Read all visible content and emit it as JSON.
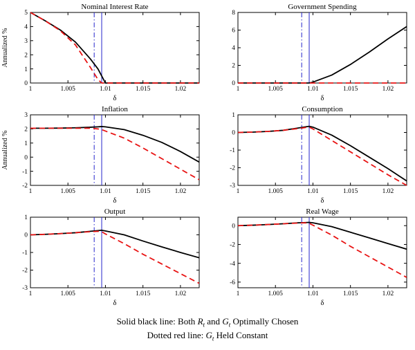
{
  "figure": {
    "background": "#ffffff",
    "accent_black": "#000000",
    "accent_red": "#e81313",
    "accent_blue": "#2424cc"
  },
  "caption": {
    "line1": {
      "pre": "Solid black line: Both ",
      "var1": "R",
      "sub1": "t",
      "mid": " and ",
      "var2": "G",
      "sub2": "t",
      "post": " Optimally Chosen"
    },
    "line2": {
      "pre": "Dotted red line: ",
      "var1": "G",
      "sub1": "t",
      "post": " Held Constant"
    }
  },
  "chart_data": [
    {
      "type": "line",
      "title": "Nominal Interest Rate",
      "xlabel": "δ",
      "ylabel": "Annualized %",
      "xlim": [
        1,
        1.0225
      ],
      "ylim": [
        0,
        5
      ],
      "xticks": [
        1,
        1.005,
        1.01,
        1.015,
        1.02
      ],
      "yticks": [
        0,
        1,
        2,
        3,
        4,
        5
      ],
      "vlines": [
        {
          "x": 1.0085,
          "style": "dashdot",
          "color": "#2424cc"
        },
        {
          "x": 1.0095,
          "style": "solid",
          "color": "#2424cc"
        }
      ],
      "series": [
        {
          "label": "Both Rt and Gt Optimally Chosen",
          "style": "solid",
          "color": "#000000",
          "x": [
            1,
            1.002,
            1.004,
            1.006,
            1.008,
            1.009,
            1.0095,
            1.01,
            1.0125,
            1.015,
            1.0175,
            1.02,
            1.0225
          ],
          "y": [
            5,
            4.4,
            3.75,
            2.9,
            1.7,
            1.0,
            0.5,
            0,
            0,
            0,
            0,
            0,
            0
          ]
        },
        {
          "label": "Gt Held Constant",
          "style": "dashed",
          "color": "#e81313",
          "x": [
            1,
            1.002,
            1.004,
            1.006,
            1.008,
            1.009,
            1.0095,
            1.01,
            1.0125,
            1.015,
            1.0175,
            1.02,
            1.0225
          ],
          "y": [
            5,
            4.4,
            3.7,
            2.7,
            1.1,
            0.25,
            0,
            0,
            0,
            0,
            0,
            0,
            0
          ]
        }
      ]
    },
    {
      "type": "line",
      "title": "Government Spending",
      "xlabel": "δ",
      "ylabel": "",
      "xlim": [
        1,
        1.0225
      ],
      "ylim": [
        0,
        8
      ],
      "xticks": [
        1,
        1.005,
        1.01,
        1.015,
        1.02
      ],
      "yticks": [
        0,
        2,
        4,
        6,
        8
      ],
      "vlines": [
        {
          "x": 1.0085,
          "style": "dashdot",
          "color": "#2424cc"
        },
        {
          "x": 1.0095,
          "style": "solid",
          "color": "#2424cc"
        }
      ],
      "series": [
        {
          "label": "Both Rt and Gt Optimally Chosen",
          "style": "solid",
          "color": "#000000",
          "x": [
            1,
            1.002,
            1.004,
            1.006,
            1.008,
            1.009,
            1.0095,
            1.01,
            1.0125,
            1.015,
            1.0175,
            1.02,
            1.0225
          ],
          "y": [
            0,
            0,
            0,
            0,
            0,
            0,
            0,
            0.1,
            0.9,
            2.1,
            3.5,
            5.0,
            6.4
          ]
        },
        {
          "label": "Gt Held Constant",
          "style": "dashed",
          "color": "#e81313",
          "x": [
            1,
            1.002,
            1.004,
            1.006,
            1.008,
            1.009,
            1.0095,
            1.01,
            1.0125,
            1.015,
            1.0175,
            1.02,
            1.0225
          ],
          "y": [
            0,
            0,
            0,
            0,
            0,
            0,
            0,
            0,
            0,
            0,
            0,
            0,
            0
          ]
        }
      ]
    },
    {
      "type": "line",
      "title": "Inflation",
      "xlabel": "δ",
      "ylabel": "Annualized %",
      "xlim": [
        1,
        1.0225
      ],
      "ylim": [
        -2,
        3
      ],
      "xticks": [
        1,
        1.005,
        1.01,
        1.015,
        1.02
      ],
      "yticks": [
        -2,
        -1,
        0,
        1,
        2,
        3
      ],
      "vlines": [
        {
          "x": 1.0085,
          "style": "dashdot",
          "color": "#2424cc"
        },
        {
          "x": 1.0095,
          "style": "solid",
          "color": "#2424cc"
        }
      ],
      "series": [
        {
          "label": "Both Rt and Gt Optimally Chosen",
          "style": "solid",
          "color": "#000000",
          "x": [
            1,
            1.002,
            1.004,
            1.006,
            1.008,
            1.009,
            1.0095,
            1.01,
            1.0125,
            1.015,
            1.0175,
            1.02,
            1.0225
          ],
          "y": [
            2.05,
            2.05,
            2.06,
            2.08,
            2.12,
            2.15,
            2.17,
            2.15,
            1.95,
            1.55,
            1.05,
            0.4,
            -0.35
          ]
        },
        {
          "label": "Gt Held Constant",
          "style": "dashed",
          "color": "#e81313",
          "x": [
            1,
            1.002,
            1.004,
            1.006,
            1.008,
            1.009,
            1.0095,
            1.01,
            1.0125,
            1.015,
            1.0175,
            1.02,
            1.0225
          ],
          "y": [
            2.05,
            2.05,
            2.05,
            2.05,
            2.05,
            2.0,
            1.95,
            1.85,
            1.35,
            0.65,
            -0.1,
            -0.85,
            -1.6
          ]
        }
      ]
    },
    {
      "type": "line",
      "title": "Consumption",
      "xlabel": "δ",
      "ylabel": "",
      "xlim": [
        1,
        1.0225
      ],
      "ylim": [
        -3,
        1
      ],
      "xticks": [
        1,
        1.005,
        1.01,
        1.015,
        1.02
      ],
      "yticks": [
        -3,
        -2,
        -1,
        0,
        1
      ],
      "vlines": [
        {
          "x": 1.0085,
          "style": "dashdot",
          "color": "#2424cc"
        },
        {
          "x": 1.0095,
          "style": "solid",
          "color": "#2424cc"
        }
      ],
      "series": [
        {
          "label": "Both Rt and Gt Optimally Chosen",
          "style": "solid",
          "color": "#000000",
          "x": [
            1,
            1.002,
            1.004,
            1.006,
            1.008,
            1.009,
            1.0095,
            1.01,
            1.0125,
            1.015,
            1.0175,
            1.02,
            1.0225
          ],
          "y": [
            0,
            0.02,
            0.06,
            0.12,
            0.25,
            0.32,
            0.35,
            0.3,
            -0.15,
            -0.75,
            -1.4,
            -2.05,
            -2.75
          ]
        },
        {
          "label": "Gt Held Constant",
          "style": "dashed",
          "color": "#e81313",
          "x": [
            1,
            1.002,
            1.004,
            1.006,
            1.008,
            1.009,
            1.0095,
            1.01,
            1.0125,
            1.015,
            1.0175,
            1.02,
            1.0225
          ],
          "y": [
            0,
            0.02,
            0.06,
            0.12,
            0.22,
            0.28,
            0.3,
            0.2,
            -0.45,
            -1.1,
            -1.75,
            -2.4,
            -3.0
          ]
        }
      ]
    },
    {
      "type": "line",
      "title": "Output",
      "xlabel": "δ",
      "ylabel": "",
      "xlim": [
        1,
        1.0225
      ],
      "ylim": [
        -3,
        1
      ],
      "xticks": [
        1,
        1.005,
        1.01,
        1.015,
        1.02
      ],
      "yticks": [
        -3,
        -2,
        -1,
        0,
        1
      ],
      "vlines": [
        {
          "x": 1.0085,
          "style": "dashdot",
          "color": "#2424cc"
        },
        {
          "x": 1.0095,
          "style": "solid",
          "color": "#2424cc"
        }
      ],
      "series": [
        {
          "label": "Both Rt and Gt Optimally Chosen",
          "style": "solid",
          "color": "#000000",
          "x": [
            1,
            1.002,
            1.004,
            1.006,
            1.008,
            1.009,
            1.0095,
            1.01,
            1.0125,
            1.015,
            1.0175,
            1.02,
            1.0225
          ],
          "y": [
            0,
            0.03,
            0.07,
            0.12,
            0.2,
            0.24,
            0.26,
            0.22,
            0.0,
            -0.35,
            -0.68,
            -1.0,
            -1.3
          ]
        },
        {
          "label": "Gt Held Constant",
          "style": "dashed",
          "color": "#e81313",
          "x": [
            1,
            1.002,
            1.004,
            1.006,
            1.008,
            1.009,
            1.0095,
            1.01,
            1.0125,
            1.015,
            1.0175,
            1.02,
            1.0225
          ],
          "y": [
            0,
            0.03,
            0.07,
            0.12,
            0.18,
            0.2,
            0.18,
            0.05,
            -0.5,
            -1.1,
            -1.65,
            -2.2,
            -2.75
          ]
        }
      ]
    },
    {
      "type": "line",
      "title": "Real Wage",
      "xlabel": "δ",
      "ylabel": "",
      "xlim": [
        1,
        1.0225
      ],
      "ylim": [
        -6.6,
        0.9
      ],
      "xticks": [
        1,
        1.005,
        1.01,
        1.015,
        1.02
      ],
      "yticks": [
        -6,
        -4,
        -2,
        0
      ],
      "vlines": [
        {
          "x": 1.0085,
          "style": "dashdot",
          "color": "#2424cc"
        },
        {
          "x": 1.0095,
          "style": "solid",
          "color": "#2424cc"
        }
      ],
      "series": [
        {
          "label": "Both Rt and Gt Optimally Chosen",
          "style": "solid",
          "color": "#000000",
          "x": [
            1,
            1.002,
            1.004,
            1.006,
            1.008,
            1.009,
            1.0095,
            1.01,
            1.0125,
            1.015,
            1.0175,
            1.02,
            1.0225
          ],
          "y": [
            0,
            0.05,
            0.12,
            0.2,
            0.3,
            0.33,
            0.35,
            0.3,
            -0.1,
            -0.7,
            -1.3,
            -1.9,
            -2.5
          ]
        },
        {
          "label": "Gt Held Constant",
          "style": "dashed",
          "color": "#e81313",
          "x": [
            1,
            1.002,
            1.004,
            1.006,
            1.008,
            1.009,
            1.0095,
            1.01,
            1.0125,
            1.015,
            1.0175,
            1.02,
            1.0225
          ],
          "y": [
            0,
            0.05,
            0.12,
            0.2,
            0.28,
            0.3,
            0.25,
            0.05,
            -1.0,
            -2.2,
            -3.3,
            -4.4,
            -5.5
          ]
        }
      ]
    }
  ]
}
